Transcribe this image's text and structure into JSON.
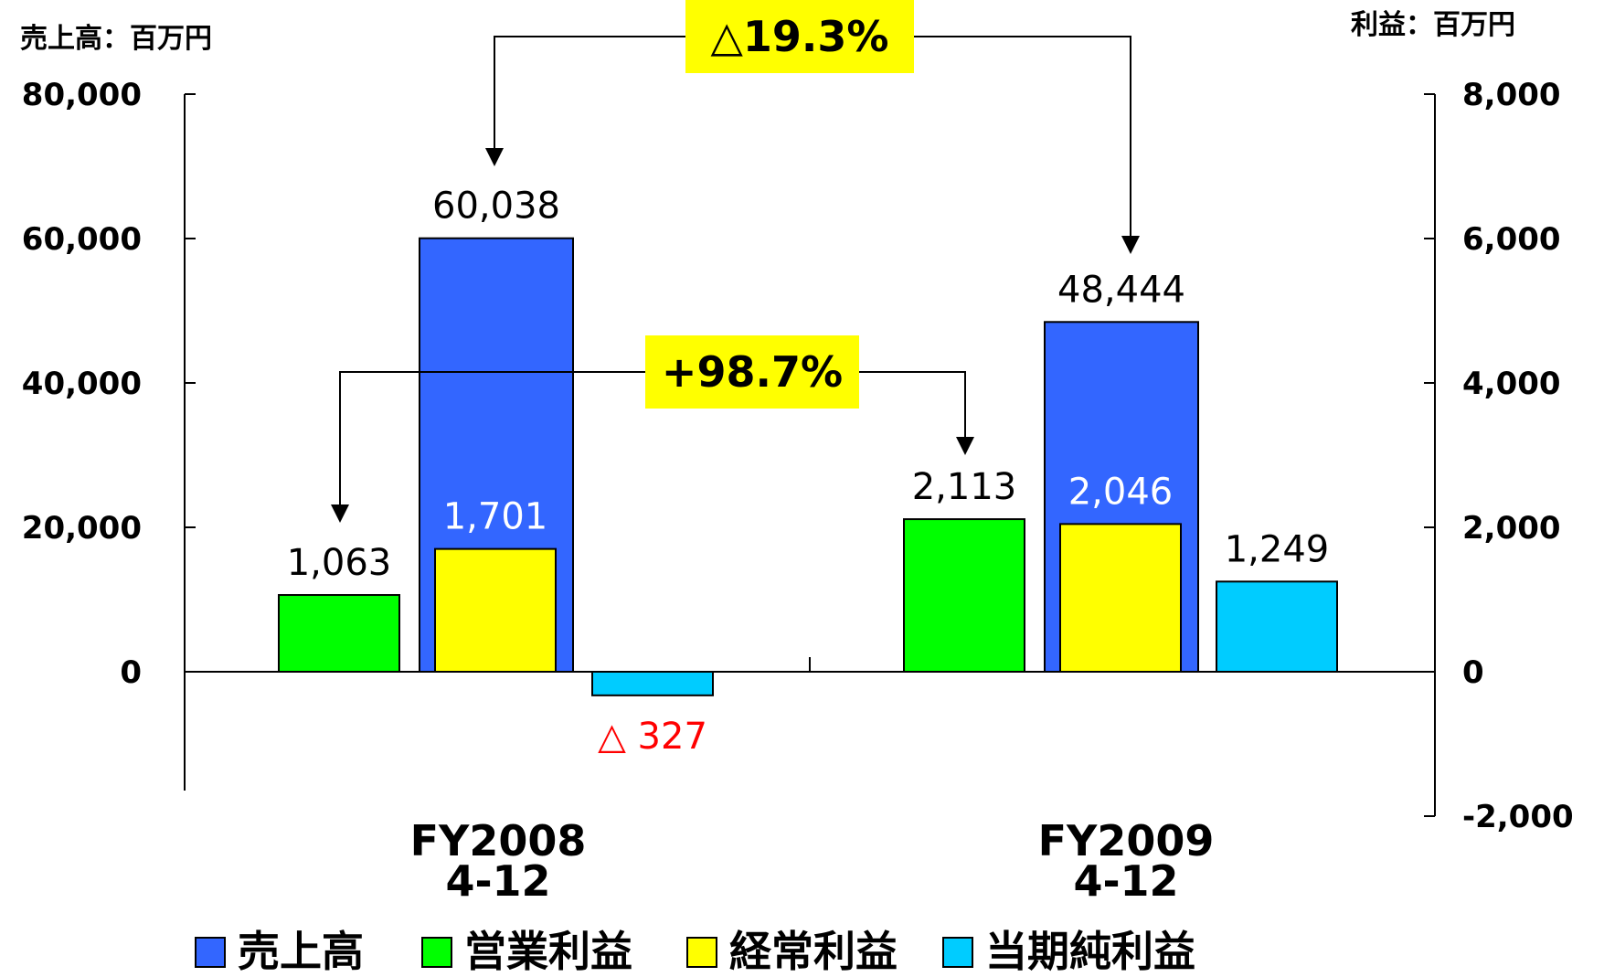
{
  "chart_data": {
    "type": "bar",
    "title": "",
    "units": {
      "left": "売上高：百万円",
      "right": "利益：百万円"
    },
    "categories": [
      {
        "line1": "FY2008",
        "line2": "4-12"
      },
      {
        "line1": "FY2009",
        "line2": "4-12"
      }
    ],
    "left_axis": {
      "ylim": [
        -20000,
        80000
      ],
      "ticks": [
        "80,000",
        "60,000",
        "40,000",
        "20,000",
        "0"
      ],
      "tick_values": [
        80000,
        60000,
        40000,
        20000,
        0
      ]
    },
    "right_axis": {
      "ylim": [
        -2000,
        8000
      ],
      "ticks": [
        "8,000",
        "6,000",
        "4,000",
        "2,000",
        "0",
        "-2,000"
      ],
      "tick_values": [
        8000,
        6000,
        4000,
        2000,
        0,
        -2000
      ],
      "negative_tick_color": "#ff0000"
    },
    "series": [
      {
        "name": "売上高",
        "axis": "left",
        "color": "#3366ff",
        "values": [
          60038,
          48444
        ],
        "labels": [
          "60,038",
          "48,444"
        ]
      },
      {
        "name": "営業利益",
        "axis": "right",
        "color": "#00ff00",
        "values": [
          1063,
          2113
        ],
        "labels": [
          "1,063",
          "2,113"
        ]
      },
      {
        "name": "経常利益",
        "axis": "right",
        "color": "#ffff00",
        "values": [
          1701,
          2046
        ],
        "labels": [
          "1,701",
          "2,046"
        ]
      },
      {
        "name": "当期純利益",
        "axis": "right",
        "color": "#00ccff",
        "values": [
          -327,
          1249
        ],
        "labels": [
          "△ 327",
          "1,249"
        ]
      }
    ],
    "label_colors": {
      "default": "#000000",
      "on_blue": "#ffffff",
      "negative": "#ff0000"
    },
    "annotations": [
      {
        "text": "△19.3%",
        "series": "売上高",
        "background": "#ffff00"
      },
      {
        "text": "+98.7%",
        "series": "営業利益",
        "background": "#ffff00"
      }
    ],
    "legend": {
      "placement": "bottom",
      "items": [
        "売上高",
        "営業利益",
        "経常利益",
        "当期純利益"
      ]
    },
    "grid": false
  }
}
